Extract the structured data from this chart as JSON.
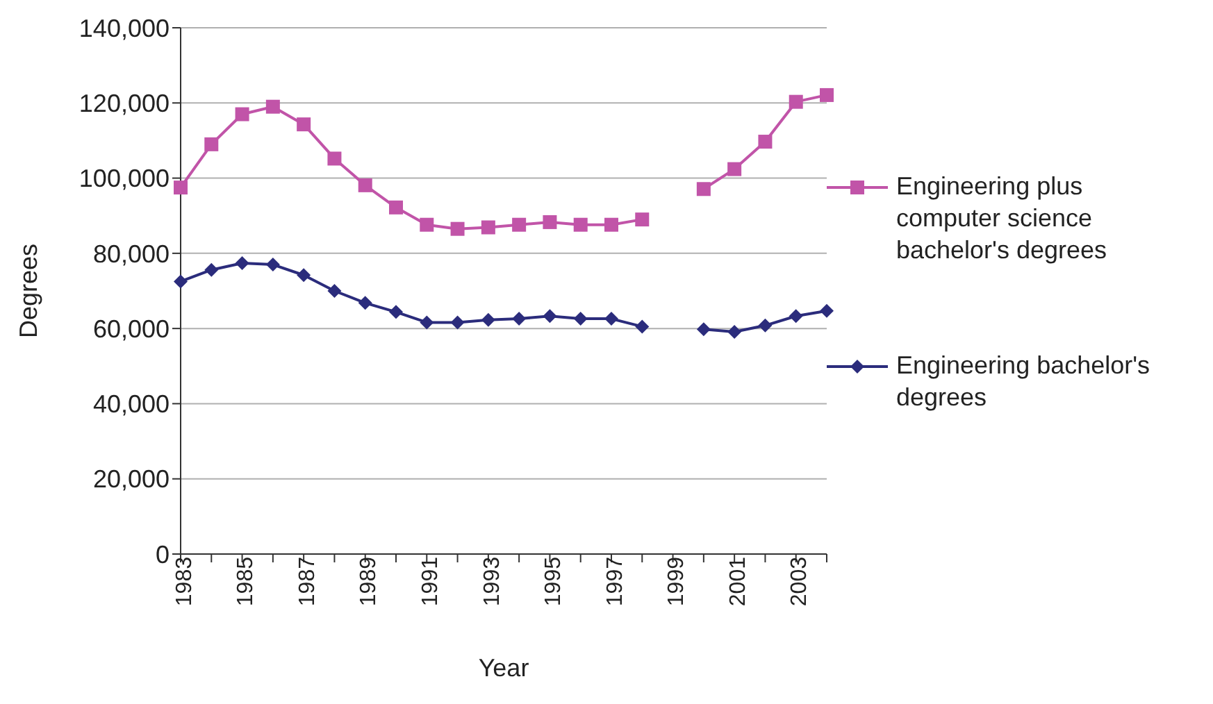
{
  "chart_data": {
    "type": "line",
    "xlabel": "Year",
    "ylabel": "Degrees",
    "categories": [
      "1983",
      null,
      "1985",
      null,
      "1987",
      null,
      "1989",
      null,
      "1991",
      null,
      "1993",
      null,
      "1995",
      null,
      "1997",
      null,
      "1999",
      null,
      "2001",
      null,
      "2003",
      null
    ],
    "series": [
      {
        "name": "Engineering plus computer science bachelor's degrees",
        "color": "#c154a8",
        "marker": "square",
        "values": [
          97500,
          109000,
          117000,
          119000,
          114300,
          105200,
          98100,
          92200,
          87600,
          86500,
          86900,
          87600,
          88300,
          87600,
          87600,
          89000,
          null,
          97100,
          102400,
          109700,
          120300,
          122100
        ]
      },
      {
        "name": "Engineering bachelor's degrees",
        "color": "#2b2c7c",
        "marker": "diamond",
        "values": [
          72500,
          75600,
          77400,
          77000,
          74200,
          70000,
          66800,
          64400,
          61600,
          61600,
          62300,
          62600,
          63300,
          62600,
          62600,
          60500,
          null,
          59800,
          59100,
          60800,
          63300,
          64700
        ]
      }
    ],
    "ylim": [
      0,
      140000
    ],
    "yticks": [
      0,
      {
        "value": 20000,
        "label": "20,000"
      },
      {
        "value": 40000,
        "label": "40,000"
      },
      {
        "value": 60000,
        "label": "60,000"
      },
      {
        "value": 80000,
        "label": "80,000"
      },
      {
        "value": 100000,
        "label": "100,000"
      },
      {
        "value": 120000,
        "label": "120,000"
      },
      {
        "value": 140000,
        "label": "140,000"
      }
    ],
    "grid": "y",
    "legend": "right",
    "line_style": "solid"
  }
}
